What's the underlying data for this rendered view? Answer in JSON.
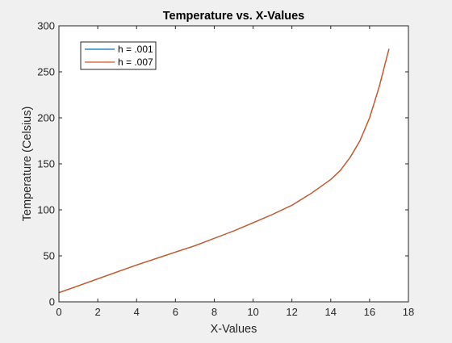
{
  "chart_data": {
    "type": "line",
    "title": "Temperature vs. X-Values",
    "xlabel": "X-Values",
    "ylabel": "Temperature (Celsius)",
    "xlim": [
      0,
      18
    ],
    "ylim": [
      0,
      300
    ],
    "xticks": [
      0,
      2,
      4,
      6,
      8,
      10,
      12,
      14,
      16,
      18
    ],
    "yticks": [
      0,
      50,
      100,
      150,
      200,
      250,
      300
    ],
    "grid": false,
    "legend_position": "top-left",
    "series": [
      {
        "name": "h = .001",
        "color": "#0072bd",
        "x": [
          0,
          1,
          2,
          3,
          4,
          5,
          6,
          7,
          8,
          9,
          10,
          11,
          12,
          13,
          14,
          14.5,
          15,
          15.5,
          16,
          16.5,
          17
        ],
        "y": [
          10,
          17.5,
          25,
          32.5,
          40,
          47,
          54,
          61,
          69,
          77,
          86,
          95,
          105,
          118,
          133,
          143,
          157,
          175,
          200,
          234,
          275
        ]
      },
      {
        "name": "h = .007",
        "color": "#d95319",
        "x": [
          0,
          1,
          2,
          3,
          4,
          5,
          6,
          7,
          8,
          9,
          10,
          11,
          12,
          13,
          14,
          14.5,
          15,
          15.5,
          16,
          16.5,
          17
        ],
        "y": [
          10,
          17.5,
          25,
          32.5,
          40,
          47,
          54,
          61,
          69,
          77,
          86,
          95,
          105,
          118,
          133,
          143,
          157,
          175,
          200,
          234,
          275
        ]
      }
    ]
  }
}
